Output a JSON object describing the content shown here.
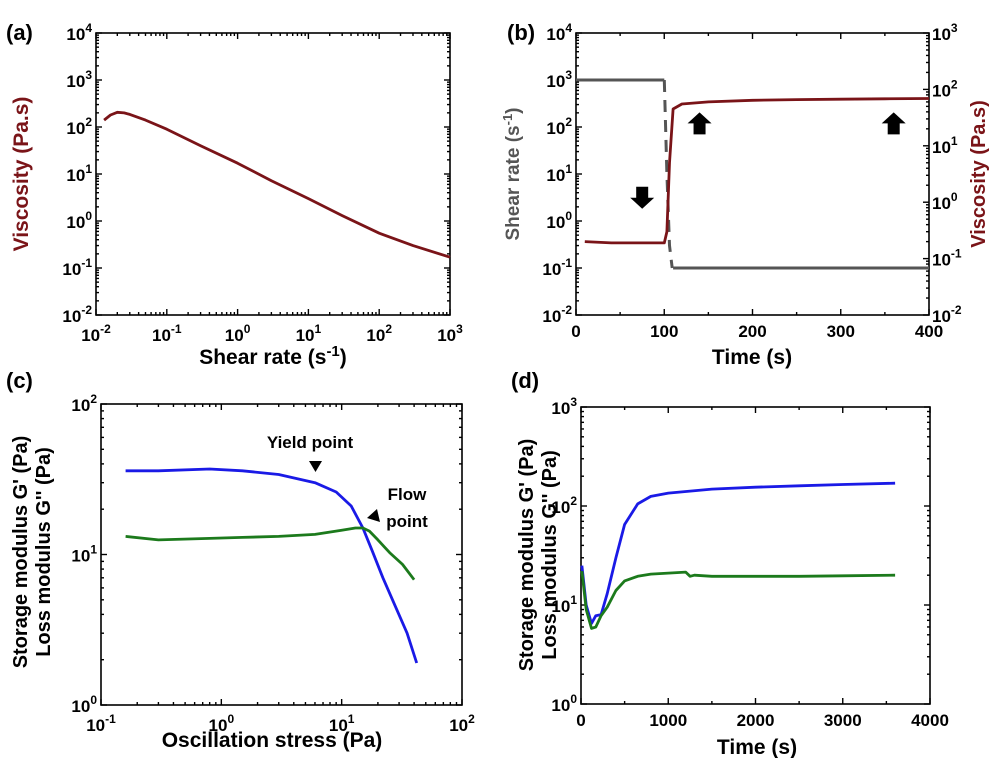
{
  "colors": {
    "red": "#7a1418",
    "gray": "#555555",
    "blue": "#1a1ae6",
    "green": "#1c7a1c"
  },
  "chart_data": [
    {
      "panel": "(a)",
      "type": "line",
      "xscale": "log",
      "yscale": "log",
      "xlim": [
        0.01,
        1000
      ],
      "ylim": [
        0.01,
        10000
      ],
      "xticks": [
        0.01,
        0.1,
        1,
        10,
        100,
        1000
      ],
      "yticks": [
        0.01,
        0.1,
        1,
        10,
        100,
        1000,
        10000
      ],
      "xlabel_main": "Shear rate (s",
      "xlabel_exp": "-1",
      "xlabel_close": ")",
      "ylabel": "Viscosity (Pa.s)",
      "ylabel_parts": [
        "Viscosity ",
        "(Pa.s)"
      ],
      "series": [
        {
          "color": "red",
          "x": [
            0.013,
            0.016,
            0.02,
            0.025,
            0.03,
            0.05,
            0.1,
            0.3,
            1,
            3,
            10,
            30,
            100,
            300,
            1000
          ],
          "y": [
            140,
            180,
            205,
            200,
            185,
            140,
            90,
            40,
            17,
            7.2,
            3.0,
            1.3,
            0.55,
            0.3,
            0.17
          ]
        }
      ]
    },
    {
      "panel": "(b)",
      "type": "line",
      "xscale": "linear",
      "yscale": "log",
      "y2scale": "log",
      "xlim": [
        0,
        400
      ],
      "ylim": [
        0.01,
        10000
      ],
      "y2lim": [
        0.01,
        1000
      ],
      "xticks": [
        0,
        100,
        200,
        300,
        400
      ],
      "yticks": [
        0.01,
        0.1,
        1,
        10,
        100,
        1000,
        10000
      ],
      "y2ticks": [
        0.01,
        0.1,
        1,
        10,
        100,
        1000
      ],
      "xlabel": "Time (s)",
      "ylabel_main": "Shear rate (s",
      "ylabel_exp": "-1",
      "ylabel_close": ")",
      "y2label": "Viscosity (Pa.s)",
      "y2label_parts": [
        "Viscosity ",
        "(Pa.s)"
      ],
      "series": [
        {
          "axis": "left",
          "color": "gray",
          "style": "solid",
          "x": [
            0,
            100
          ],
          "y": [
            1000,
            1000
          ]
        },
        {
          "axis": "left",
          "color": "gray",
          "style": "dashed",
          "x": [
            100,
            103,
            106,
            109
          ],
          "y": [
            1000,
            10,
            0.3,
            0.1
          ]
        },
        {
          "axis": "left",
          "color": "gray",
          "style": "solid",
          "x": [
            110,
            400
          ],
          "y": [
            0.1,
            0.1
          ]
        },
        {
          "axis": "right",
          "color": "red",
          "style": "solid",
          "x": [
            10,
            40,
            70,
            100,
            103,
            106,
            110,
            120,
            150,
            200,
            250,
            300,
            350,
            400
          ],
          "y": [
            0.2,
            0.19,
            0.19,
            0.19,
            0.3,
            5,
            45,
            55,
            60,
            64,
            66,
            67,
            68,
            69
          ]
        }
      ],
      "arrows": [
        {
          "x": 75,
          "y": 1.2,
          "dir": "down"
        },
        {
          "x": 140,
          "y": 25,
          "dir": "up"
        },
        {
          "x": 360,
          "y": 25,
          "dir": "up"
        }
      ]
    },
    {
      "panel": "(c)",
      "type": "line",
      "xscale": "log",
      "yscale": "log",
      "xlim": [
        0.1,
        100
      ],
      "ylim": [
        1,
        100
      ],
      "xticks": [
        0.1,
        1,
        10,
        100
      ],
      "yticks": [
        1,
        10,
        100
      ],
      "xlabel": "Oscillation stress (Pa)",
      "ylabel_blue": "Storage modulus G' (Pa)",
      "ylabel_green": "Loss modulus G'' (Pa)",
      "series": [
        {
          "color": "blue",
          "x": [
            0.16,
            0.3,
            0.8,
            1.5,
            3,
            6,
            9,
            12,
            15,
            18,
            22,
            28,
            35,
            42
          ],
          "y": [
            36,
            36,
            37,
            36,
            34,
            30,
            26,
            21,
            15,
            10.5,
            7,
            4.5,
            3,
            1.9
          ]
        },
        {
          "color": "green",
          "x": [
            0.16,
            0.3,
            0.8,
            1.5,
            3,
            6,
            10,
            13,
            15,
            17,
            20,
            25,
            32,
            40
          ],
          "y": [
            13.2,
            12.5,
            12.8,
            13,
            13.2,
            13.6,
            14.5,
            15,
            15,
            14.3,
            12.5,
            10.3,
            8.6,
            6.8
          ]
        }
      ],
      "annotations": [
        {
          "text": "Yield point"
        },
        {
          "text": "Flow"
        },
        {
          "text": "point"
        }
      ]
    },
    {
      "panel": "(d)",
      "type": "line",
      "xscale": "linear",
      "yscale": "log",
      "xlim": [
        0,
        4000
      ],
      "ylim": [
        1,
        1000
      ],
      "xticks": [
        0,
        1000,
        2000,
        3000,
        4000
      ],
      "yticks": [
        1,
        10,
        100,
        1000
      ],
      "xlabel": "Time (s)",
      "ylabel_blue": "Storage modulus G' (Pa)",
      "ylabel_green": "Loss modulus G'' (Pa)",
      "series": [
        {
          "color": "blue",
          "x": [
            10,
            60,
            120,
            170,
            230,
            300,
            400,
            500,
            650,
            800,
            1000,
            1500,
            2000,
            2500,
            3000,
            3600
          ],
          "y": [
            25,
            10,
            6.5,
            7.8,
            8,
            13,
            30,
            65,
            105,
            125,
            135,
            148,
            155,
            160,
            165,
            170
          ]
        },
        {
          "color": "green",
          "x": [
            10,
            60,
            120,
            170,
            230,
            300,
            400,
            500,
            650,
            800,
            1000,
            1200,
            1250,
            1300,
            1500,
            2000,
            2500,
            3000,
            3600
          ],
          "y": [
            22,
            9,
            5.8,
            6,
            7.8,
            9.5,
            14,
            17.5,
            19.5,
            20.5,
            21,
            21.5,
            19.5,
            20,
            19.5,
            19.5,
            19.5,
            19.7,
            20
          ]
        }
      ]
    }
  ]
}
